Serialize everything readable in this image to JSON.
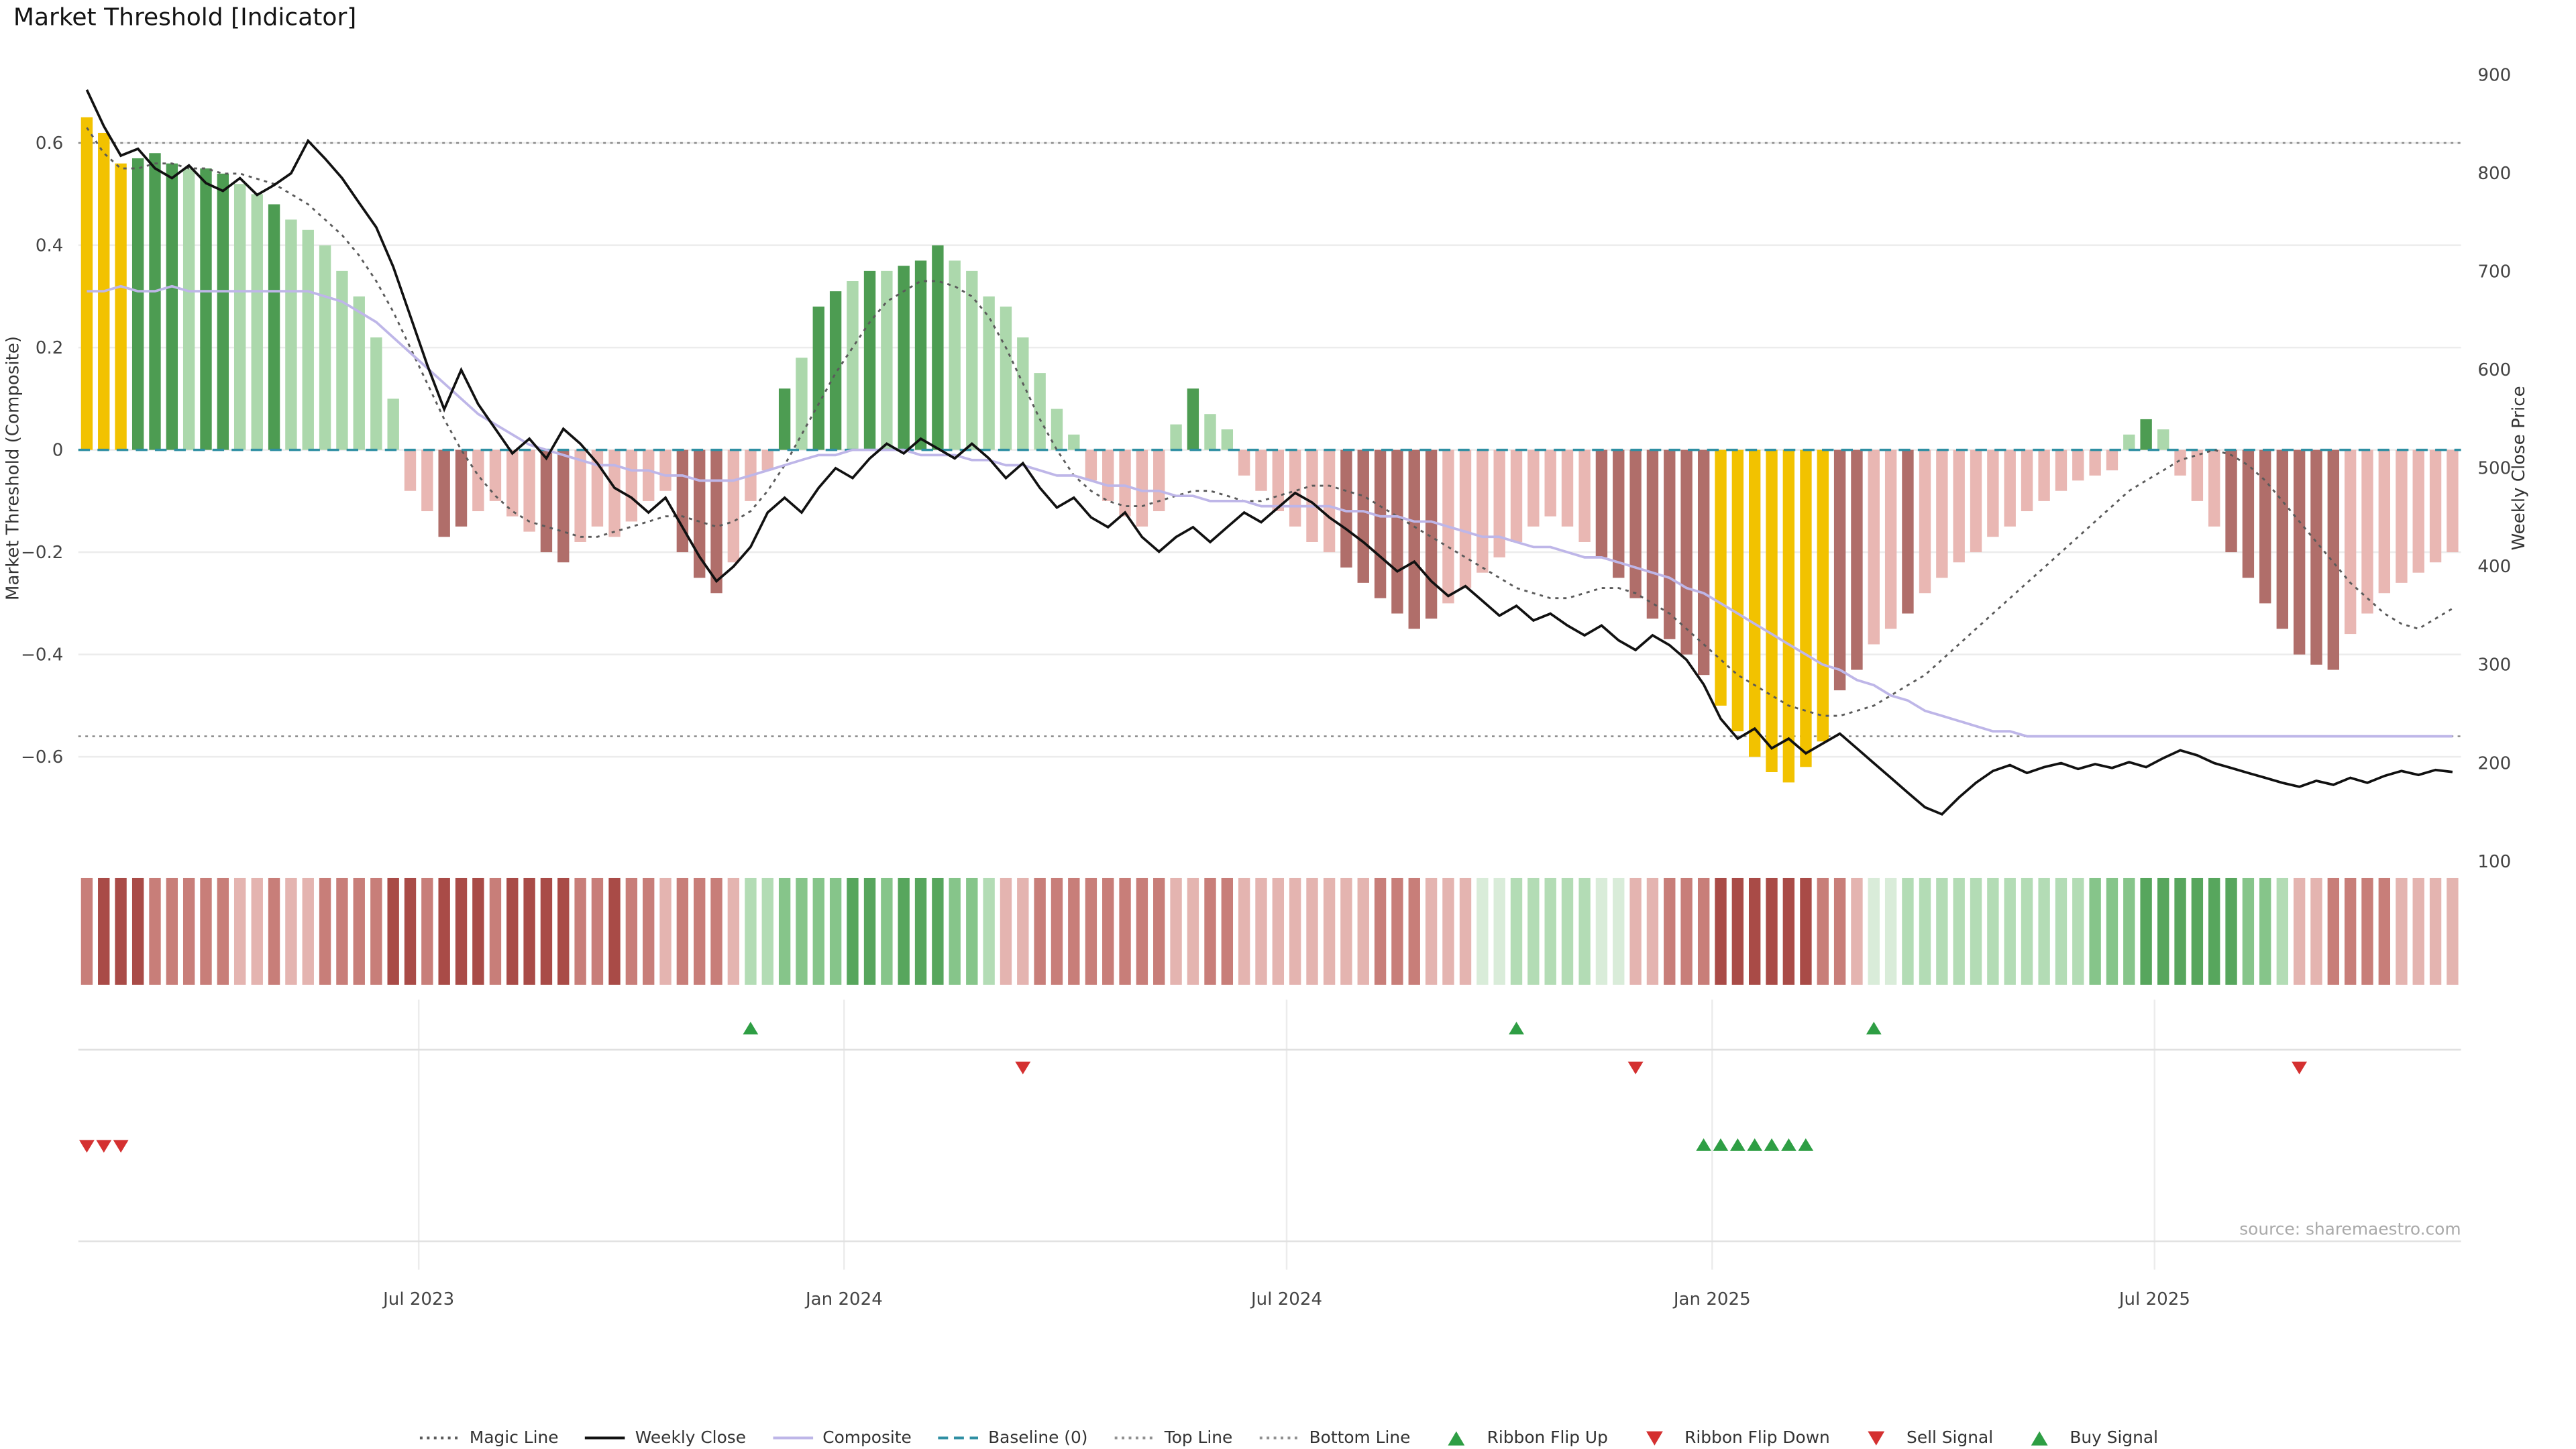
{
  "title": "Market Threshold [Indicator]",
  "source": "source: sharemaestro.com",
  "axes": {
    "left_label": "Market Threshold (Composite)",
    "right_label": "Weekly Close Price",
    "left_ticks": [
      {
        "v": 0.6,
        "t": "0.6"
      },
      {
        "v": 0.4,
        "t": "0.4"
      },
      {
        "v": 0.2,
        "t": "0.2"
      },
      {
        "v": 0,
        "t": "0"
      },
      {
        "v": -0.2,
        "t": "−0.2"
      },
      {
        "v": -0.4,
        "t": "−0.4"
      },
      {
        "v": -0.6,
        "t": "−0.6"
      }
    ],
    "right_ticks": [
      900,
      800,
      700,
      600,
      500,
      400,
      300,
      200,
      100
    ]
  },
  "colors": {
    "bars": {
      "y": "#F2C200",
      "G": "#4D9C52",
      "g": "#ACD8AC",
      "R": "#B06E6A",
      "r": "#E9B7B3"
    },
    "ribbon": {
      "r3": "#A94B47",
      "r2": "#C87E79",
      "r1": "#E4B4B0",
      "g0": "#D9ECD9",
      "g1": "#B3DCB5",
      "g2": "#86C58A",
      "g3": "#57A65D"
    },
    "lines": {
      "magic": "#5A5A5A",
      "weekly_close": "#111111",
      "composite": "#BEB6E8",
      "baseline": "#2F8FA3",
      "top_line": "#909090",
      "bottom_line": "#909090"
    },
    "signals": {
      "up": "#2E9E44",
      "down": "#D43030"
    },
    "grid": "#ECECEC",
    "signal_grid": "#E0E0E0"
  },
  "legend": [
    {
      "label": "Magic Line",
      "swatch": "dotted",
      "color": "#5A5A5A"
    },
    {
      "label": "Weekly Close",
      "swatch": "solid",
      "color": "#111111"
    },
    {
      "label": "Composite",
      "swatch": "solid",
      "color": "#BEB6E8"
    },
    {
      "label": "Baseline (0)",
      "swatch": "dashed",
      "color": "#2F8FA3"
    },
    {
      "label": "Top Line",
      "swatch": "dotted",
      "color": "#909090"
    },
    {
      "label": "Bottom Line",
      "swatch": "dotted",
      "color": "#909090"
    },
    {
      "label": "Ribbon Flip Up",
      "swatch": "tri-up",
      "color": "#2E9E44"
    },
    {
      "label": "Ribbon Flip Down",
      "swatch": "tri-down",
      "color": "#D43030"
    },
    {
      "label": "Sell Signal",
      "swatch": "tri-down",
      "color": "#D43030"
    },
    {
      "label": "Buy Signal",
      "swatch": "tri-up",
      "color": "#2E9E44"
    }
  ],
  "chart_data": {
    "type": "bar+line",
    "title": "Market Threshold [Indicator]",
    "x_axis": {
      "unit": "week",
      "n_points": 140,
      "tick_weeks": [
        20,
        45,
        71,
        96,
        122
      ],
      "tick_labels": [
        "Jul 2023",
        "Jan 2024",
        "Jul 2024",
        "Jan 2025",
        "Jul 2025"
      ]
    },
    "left_axis": {
      "label": "Market Threshold (Composite)",
      "range": [
        -0.8,
        0.73
      ]
    },
    "right_axis": {
      "label": "Weekly Close Price",
      "range": [
        100,
        900
      ]
    },
    "baseline": 0,
    "top_line": 0.6,
    "bottom_line": -0.56,
    "threshold_bars": {
      "values": [
        0.65,
        0.62,
        0.56,
        0.57,
        0.58,
        0.56,
        0.55,
        0.55,
        0.54,
        0.52,
        0.5,
        0.48,
        0.45,
        0.43,
        0.4,
        0.35,
        0.3,
        0.22,
        0.1,
        -0.08,
        -0.12,
        -0.17,
        -0.15,
        -0.12,
        -0.1,
        -0.13,
        -0.16,
        -0.2,
        -0.22,
        -0.18,
        -0.15,
        -0.17,
        -0.14,
        -0.1,
        -0.08,
        -0.2,
        -0.25,
        -0.28,
        -0.22,
        -0.1,
        -0.04,
        0.12,
        0.18,
        0.28,
        0.31,
        0.33,
        0.35,
        0.35,
        0.36,
        0.37,
        0.4,
        0.37,
        0.35,
        0.3,
        0.28,
        0.22,
        0.15,
        0.08,
        0.03,
        -0.06,
        -0.1,
        -0.13,
        -0.15,
        -0.12,
        0.05,
        0.12,
        0.07,
        0.04,
        -0.05,
        -0.08,
        -0.12,
        -0.15,
        -0.18,
        -0.2,
        -0.23,
        -0.26,
        -0.29,
        -0.32,
        -0.35,
        -0.33,
        -0.3,
        -0.27,
        -0.24,
        -0.21,
        -0.18,
        -0.15,
        -0.13,
        -0.15,
        -0.18,
        -0.21,
        -0.25,
        -0.29,
        -0.33,
        -0.37,
        -0.4,
        -0.44,
        -0.5,
        -0.55,
        -0.6,
        -0.63,
        -0.65,
        -0.62,
        -0.57,
        -0.47,
        -0.43,
        -0.38,
        -0.35,
        -0.32,
        -0.28,
        -0.25,
        -0.22,
        -0.2,
        -0.17,
        -0.15,
        -0.12,
        -0.1,
        -0.08,
        -0.06,
        -0.05,
        -0.04,
        0.03,
        0.06,
        0.04,
        -0.05,
        -0.1,
        -0.15,
        -0.2,
        -0.25,
        -0.3,
        -0.35,
        -0.4,
        -0.42,
        -0.43,
        -0.36,
        -0.32,
        -0.28,
        -0.26,
        -0.24,
        -0.22,
        -0.2
      ],
      "colors": [
        "y",
        "y",
        "y",
        "G",
        "G",
        "G",
        "g",
        "G",
        "G",
        "g",
        "g",
        "G",
        "g",
        "g",
        "g",
        "g",
        "g",
        "g",
        "g",
        "r",
        "r",
        "R",
        "R",
        "r",
        "r",
        "r",
        "r",
        "R",
        "R",
        "r",
        "r",
        "r",
        "r",
        "r",
        "r",
        "R",
        "R",
        "R",
        "r",
        "r",
        "r",
        "G",
        "g",
        "G",
        "G",
        "g",
        "G",
        "g",
        "G",
        "G",
        "G",
        "g",
        "g",
        "g",
        "g",
        "g",
        "g",
        "g",
        "g",
        "r",
        "r",
        "r",
        "r",
        "r",
        "g",
        "G",
        "g",
        "g",
        "r",
        "r",
        "r",
        "r",
        "r",
        "r",
        "R",
        "R",
        "R",
        "R",
        "R",
        "R",
        "r",
        "r",
        "r",
        "r",
        "r",
        "r",
        "r",
        "r",
        "r",
        "R",
        "R",
        "R",
        "R",
        "R",
        "R",
        "R",
        "y",
        "y",
        "y",
        "y",
        "y",
        "y",
        "y",
        "R",
        "R",
        "r",
        "r",
        "R",
        "r",
        "r",
        "r",
        "r",
        "r",
        "r",
        "r",
        "r",
        "r",
        "r",
        "r",
        "r",
        "g",
        "G",
        "g",
        "r",
        "r",
        "r",
        "R",
        "R",
        "R",
        "R",
        "R",
        "R",
        "R",
        "r",
        "r",
        "r",
        "r",
        "r",
        "r",
        "r"
      ]
    },
    "series": [
      {
        "name": "Magic Line",
        "axis": "left",
        "style": "dotted",
        "values": [
          0.63,
          0.58,
          0.55,
          0.55,
          0.56,
          0.56,
          0.55,
          0.55,
          0.54,
          0.54,
          0.53,
          0.52,
          0.5,
          0.48,
          0.45,
          0.42,
          0.38,
          0.33,
          0.27,
          0.2,
          0.13,
          0.06,
          0.0,
          -0.05,
          -0.09,
          -0.12,
          -0.14,
          -0.15,
          -0.16,
          -0.17,
          -0.17,
          -0.16,
          -0.15,
          -0.14,
          -0.13,
          -0.13,
          -0.14,
          -0.15,
          -0.14,
          -0.12,
          -0.08,
          -0.03,
          0.03,
          0.09,
          0.15,
          0.2,
          0.25,
          0.29,
          0.31,
          0.33,
          0.33,
          0.32,
          0.3,
          0.26,
          0.2,
          0.13,
          0.06,
          0.0,
          -0.05,
          -0.08,
          -0.1,
          -0.11,
          -0.11,
          -0.1,
          -0.09,
          -0.08,
          -0.08,
          -0.09,
          -0.1,
          -0.1,
          -0.09,
          -0.08,
          -0.07,
          -0.07,
          -0.08,
          -0.09,
          -0.11,
          -0.13,
          -0.15,
          -0.17,
          -0.19,
          -0.21,
          -0.23,
          -0.25,
          -0.27,
          -0.28,
          -0.29,
          -0.29,
          -0.28,
          -0.27,
          -0.27,
          -0.28,
          -0.3,
          -0.32,
          -0.35,
          -0.38,
          -0.41,
          -0.44,
          -0.46,
          -0.48,
          -0.5,
          -0.51,
          -0.52,
          -0.52,
          -0.51,
          -0.5,
          -0.48,
          -0.46,
          -0.44,
          -0.41,
          -0.38,
          -0.35,
          -0.32,
          -0.29,
          -0.26,
          -0.23,
          -0.2,
          -0.17,
          -0.14,
          -0.11,
          -0.08,
          -0.06,
          -0.04,
          -0.02,
          -0.01,
          0.0,
          -0.01,
          -0.03,
          -0.06,
          -0.1,
          -0.14,
          -0.18,
          -0.22,
          -0.26,
          -0.29,
          -0.32,
          -0.34,
          -0.35,
          -0.33,
          -0.31
        ]
      },
      {
        "name": "Weekly Close",
        "axis": "right",
        "style": "solid",
        "values": [
          885,
          848,
          818,
          825,
          805,
          795,
          808,
          790,
          782,
          795,
          778,
          788,
          800,
          833,
          815,
          795,
          770,
          745,
          705,
          655,
          605,
          560,
          600,
          565,
          540,
          515,
          530,
          510,
          540,
          525,
          505,
          480,
          470,
          455,
          470,
          440,
          410,
          385,
          400,
          420,
          455,
          470,
          455,
          480,
          500,
          490,
          510,
          525,
          515,
          530,
          520,
          510,
          525,
          510,
          490,
          505,
          480,
          460,
          470,
          450,
          440,
          455,
          430,
          415,
          430,
          440,
          425,
          440,
          455,
          445,
          460,
          475,
          465,
          450,
          438,
          425,
          410,
          395,
          405,
          385,
          370,
          380,
          365,
          350,
          360,
          345,
          352,
          340,
          330,
          340,
          325,
          315,
          330,
          320,
          305,
          280,
          245,
          225,
          235,
          215,
          225,
          210,
          220,
          230,
          215,
          200,
          185,
          170,
          155,
          148,
          165,
          180,
          192,
          198,
          190,
          196,
          200,
          194,
          199,
          195,
          201,
          196,
          205,
          213,
          208,
          200,
          195,
          190,
          185,
          180,
          176,
          182,
          178,
          185,
          180,
          187,
          192,
          188,
          193,
          191
        ]
      },
      {
        "name": "Composite",
        "axis": "left",
        "style": "solid",
        "values": [
          0.31,
          0.31,
          0.32,
          0.31,
          0.31,
          0.32,
          0.31,
          0.31,
          0.31,
          0.31,
          0.31,
          0.31,
          0.31,
          0.31,
          0.3,
          0.29,
          0.27,
          0.25,
          0.22,
          0.19,
          0.16,
          0.13,
          0.1,
          0.07,
          0.05,
          0.03,
          0.01,
          0.0,
          -0.01,
          -0.02,
          -0.03,
          -0.03,
          -0.04,
          -0.04,
          -0.05,
          -0.05,
          -0.06,
          -0.06,
          -0.06,
          -0.05,
          -0.04,
          -0.03,
          -0.02,
          -0.01,
          -0.01,
          0.0,
          0.0,
          0.0,
          0.0,
          -0.01,
          -0.01,
          -0.01,
          -0.02,
          -0.02,
          -0.03,
          -0.03,
          -0.04,
          -0.05,
          -0.05,
          -0.06,
          -0.07,
          -0.07,
          -0.08,
          -0.08,
          -0.09,
          -0.09,
          -0.1,
          -0.1,
          -0.1,
          -0.11,
          -0.11,
          -0.11,
          -0.11,
          -0.11,
          -0.12,
          -0.12,
          -0.13,
          -0.13,
          -0.14,
          -0.14,
          -0.15,
          -0.16,
          -0.17,
          -0.17,
          -0.18,
          -0.19,
          -0.19,
          -0.2,
          -0.21,
          -0.21,
          -0.22,
          -0.23,
          -0.24,
          -0.25,
          -0.27,
          -0.28,
          -0.3,
          -0.32,
          -0.34,
          -0.36,
          -0.38,
          -0.4,
          -0.42,
          -0.43,
          -0.45,
          -0.46,
          -0.48,
          -0.49,
          -0.51,
          -0.52,
          -0.53,
          -0.54,
          -0.55,
          -0.55,
          -0.56,
          -0.56,
          -0.56,
          -0.56,
          -0.56,
          -0.56,
          -0.56,
          -0.56,
          -0.56,
          -0.56,
          -0.56,
          -0.56,
          -0.56,
          -0.56,
          -0.56,
          -0.56,
          -0.56,
          -0.56,
          -0.56,
          -0.56,
          -0.56,
          -0.56,
          -0.56,
          -0.56,
          -0.56,
          -0.56
        ]
      }
    ],
    "ribbon": [
      "r2",
      "r3",
      "r3",
      "r3",
      "r2",
      "r2",
      "r2",
      "r2",
      "r2",
      "r1",
      "r1",
      "r2",
      "r1",
      "r1",
      "r2",
      "r2",
      "r2",
      "r2",
      "r3",
      "r3",
      "r2",
      "r3",
      "r3",
      "r3",
      "r2",
      "r3",
      "r3",
      "r3",
      "r3",
      "r2",
      "r2",
      "r3",
      "r2",
      "r2",
      "r1",
      "r2",
      "r2",
      "r2",
      "r1",
      "g1",
      "g1",
      "g2",
      "g2",
      "g2",
      "g2",
      "g3",
      "g3",
      "g2",
      "g3",
      "g3",
      "g3",
      "g2",
      "g2",
      "g1",
      "r1",
      "r1",
      "r2",
      "r2",
      "r2",
      "r2",
      "r2",
      "r2",
      "r2",
      "r2",
      "r1",
      "r1",
      "r2",
      "r2",
      "r1",
      "r1",
      "r1",
      "r1",
      "r1",
      "r1",
      "r1",
      "r1",
      "r2",
      "r2",
      "r2",
      "r1",
      "r1",
      "r1",
      "g0",
      "g0",
      "g1",
      "g1",
      "g1",
      "g1",
      "g1",
      "g0",
      "g0",
      "r1",
      "r1",
      "r2",
      "r2",
      "r2",
      "r3",
      "r3",
      "r3",
      "r3",
      "r3",
      "r3",
      "r2",
      "r2",
      "r1",
      "g0",
      "g0",
      "g1",
      "g1",
      "g1",
      "g1",
      "g1",
      "g1",
      "g1",
      "g1",
      "g1",
      "g1",
      "g1",
      "g2",
      "g2",
      "g2",
      "g3",
      "g3",
      "g3",
      "g3",
      "g3",
      "g3",
      "g2",
      "g2",
      "g1",
      "r1",
      "r1",
      "r2",
      "r2",
      "r2",
      "r2",
      "r1",
      "r1",
      "r1",
      "r1"
    ],
    "signals": {
      "ribbon_flip_up_weeks": [
        39,
        84,
        105
      ],
      "ribbon_flip_down_weeks": [
        55,
        91,
        130
      ],
      "sell_signal_weeks": [
        0,
        1,
        2
      ],
      "buy_signal_weeks": [
        95,
        96,
        97,
        98,
        99,
        100,
        101
      ]
    }
  }
}
